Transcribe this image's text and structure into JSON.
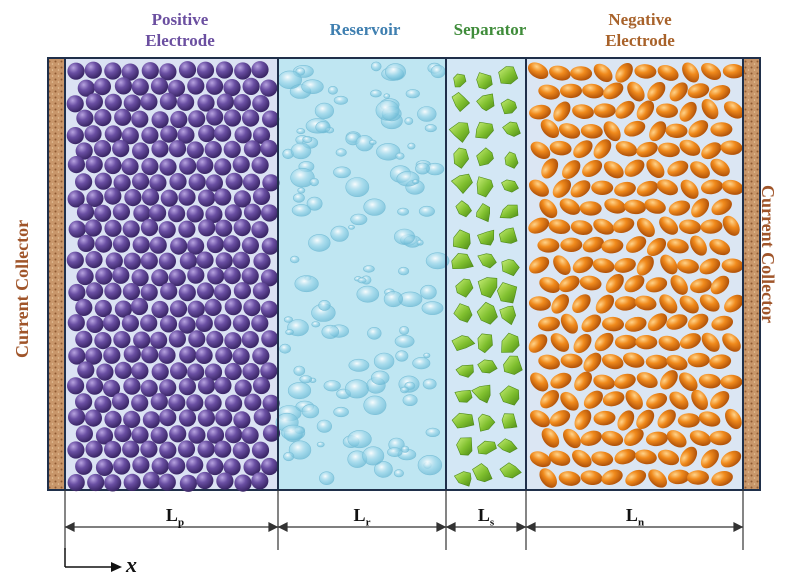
{
  "regions": {
    "positive": {
      "line1": "Positive",
      "line2": "Electrode"
    },
    "reservoir": {
      "label": "Reservoir"
    },
    "separator": {
      "label": "Separator"
    },
    "negative": {
      "line1": "Negative",
      "line2": "Electrode"
    }
  },
  "collector_label": "Current Collector",
  "lengths": [
    {
      "main": "L",
      "sub": "p"
    },
    {
      "main": "L",
      "sub": "r"
    },
    {
      "main": "L",
      "sub": "s"
    },
    {
      "main": "L",
      "sub": "n"
    }
  ],
  "axis_label": "x",
  "colors": {
    "positive_particle": "#6a4fa3",
    "reservoir": "#bfe6f2",
    "separator_particle": "#8cc63f",
    "negative_particle": "#f08a1c",
    "collector": "#b9865a",
    "collector_text": "#a0552a"
  }
}
